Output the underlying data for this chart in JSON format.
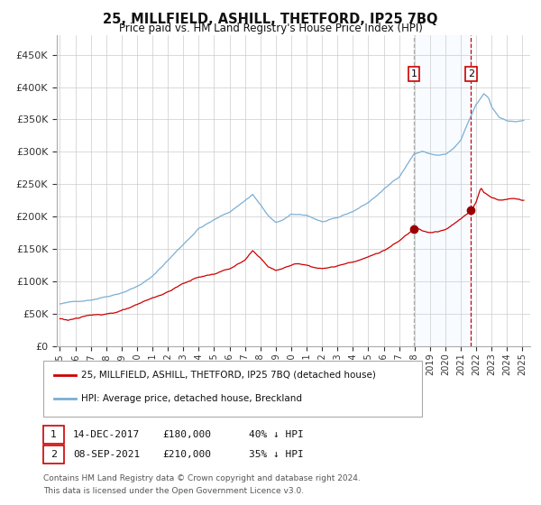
{
  "title": "25, MILLFIELD, ASHILL, THETFORD, IP25 7BQ",
  "subtitle": "Price paid vs. HM Land Registry's House Price Index (HPI)",
  "hpi_label": "HPI: Average price, detached house, Breckland",
  "property_label": "25, MILLFIELD, ASHILL, THETFORD, IP25 7BQ (detached house)",
  "hpi_color": "#7bafd4",
  "property_color": "#cc0000",
  "marker_color": "#990000",
  "vline1_color": "#aaaaaa",
  "vline2_color": "#cc0000",
  "shade_color": "#ddeeff",
  "background_color": "#ffffff",
  "grid_color": "#cccccc",
  "sale1_date": 2017.958,
  "sale1_price": 180000,
  "sale1_label": "1",
  "sale1_text": "14-DEC-2017",
  "sale1_price_str": "£180,000",
  "sale1_hpi_str": "40% ↓ HPI",
  "sale2_date": 2021.667,
  "sale2_price": 210000,
  "sale2_label": "2",
  "sale2_text": "08-SEP-2021",
  "sale2_price_str": "£210,000",
  "sale2_hpi_str": "35% ↓ HPI",
  "ylim": [
    0,
    480000
  ],
  "xlim_start": 1994.8,
  "xlim_end": 2025.5,
  "yticks": [
    0,
    50000,
    100000,
    150000,
    200000,
    250000,
    300000,
    350000,
    400000,
    450000
  ],
  "ytick_labels": [
    "£0",
    "£50K",
    "£100K",
    "£150K",
    "£200K",
    "£250K",
    "£300K",
    "£350K",
    "£400K",
    "£450K"
  ],
  "xticks": [
    1995,
    1996,
    1997,
    1998,
    1999,
    2000,
    2001,
    2002,
    2003,
    2004,
    2005,
    2006,
    2007,
    2008,
    2009,
    2010,
    2011,
    2012,
    2013,
    2014,
    2015,
    2016,
    2017,
    2018,
    2019,
    2020,
    2021,
    2022,
    2023,
    2024,
    2025
  ],
  "footer_line1": "Contains HM Land Registry data © Crown copyright and database right 2024.",
  "footer_line2": "This data is licensed under the Open Government Licence v3.0."
}
